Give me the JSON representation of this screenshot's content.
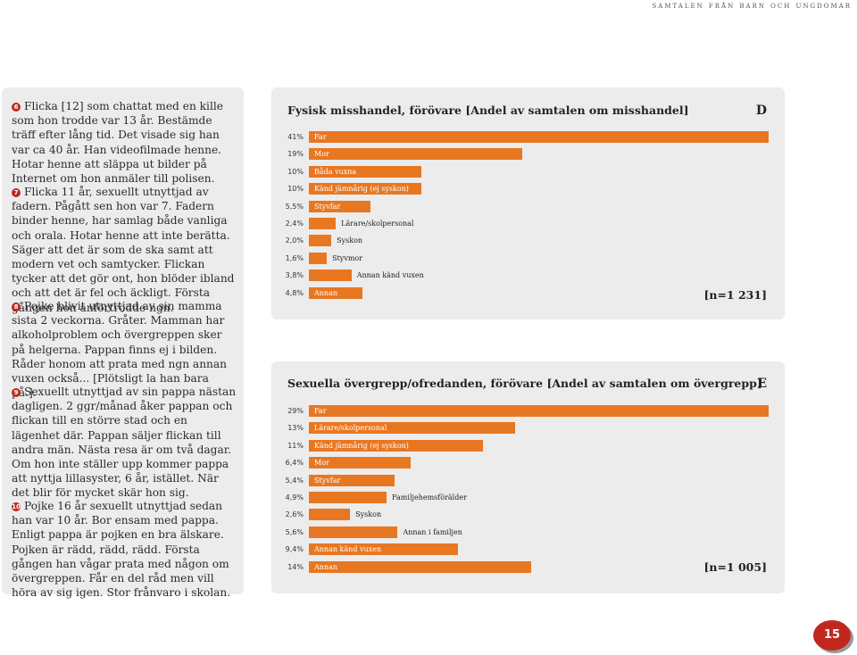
{
  "header": {
    "running_title": "samtalen från barn och ungdomar"
  },
  "stories": [
    {
      "num": "6",
      "text": "Flicka [12] som chattat med en kille som hon trodde var 13 år. Bestämde träff efter lång tid. Det visade sig han var ca 40 år. Han videofilmade henne. Hotar henne att släppa ut bilder på Internet om hon anmäler till polisen."
    },
    {
      "num": "7",
      "text": "Flicka 11 år, sexuellt utnyttjad av fadern. Pågått sen hon var 7. Fadern binder henne, har samlag både vanliga och orala. Hotar henne att inte berätta. Säger att det är som de ska samt att modern vet och samtycker. Flickan tycker att det gör ont, hon blöder ibland och att det är fel och äckligt. Första gången hon anförtrodde ngn."
    },
    {
      "num": "8",
      "text": "Pojke blivit utnyttjad av sin mamma sista 2 veckorna. Gråter. Mamman har alkoholproblem och övergreppen sker på helgerna. Pappan finns ej i bilden. Råder honom att prata med ngn annan vuxen också... [Plötsligt la han bara på.]."
    },
    {
      "num": "9",
      "text": "Sexuellt utnyttjad av sin pappa nästan dagligen. 2 ggr/månad åker pappan och flickan till en större stad och en lägenhet där. Pappan säljer flickan till andra män. Nästa resa är om två dagar. Om hon inte ställer upp kommer pappa att nyttja lillasyster, 6 år, istället. När det blir för mycket skär hon sig."
    },
    {
      "num": "10",
      "text": "Pojke 16 år sexuellt utnyttjad sedan han var 10 år. Bor ensam med pappa. Enligt pappa är pojken en bra älskare. Pojken är rädd, rädd, rädd. Första gången han vågar prata med någon om övergreppen. Får en del råd men vill höra av sig igen. Stor frånvaro i skolan."
    }
  ],
  "chart_data": [
    {
      "type": "bar",
      "letter": "D",
      "title": "Fysisk misshandel, förövare [Andel av samtalen om misshandel]",
      "n_label": "[n=1 231]",
      "accent_color": "#e87722",
      "value_labels": [
        "41%",
        "19%",
        "10%",
        "10%",
        "5,5%",
        "2,4%",
        "2,0%",
        "1,6%",
        "3,8%",
        "4,8%"
      ],
      "categories": [
        "Far",
        "Mor",
        "Båda vuxna",
        "Känd jämnårig (ej syskon)",
        "Styvfar",
        "Lärare/skolpersonal",
        "Syskon",
        "Styvmor",
        "Annan känd vuxen",
        "Annan"
      ],
      "values": [
        41,
        19,
        10,
        10,
        5.5,
        2.4,
        2.0,
        1.6,
        3.8,
        4.8
      ],
      "xlim": [
        0,
        41
      ]
    },
    {
      "type": "bar",
      "letter": "E",
      "title": "Sexuella övergrepp/ofredanden, förövare [Andel av samtalen om övergrepp]",
      "n_label": "[n=1 005]",
      "accent_color": "#e87722",
      "value_labels": [
        "29%",
        "13%",
        "11%",
        "6,4%",
        "5,4%",
        "4,9%",
        "2,6%",
        "5,6%",
        "9,4%",
        "14%"
      ],
      "categories": [
        "Far",
        "Lärare/skolpersonal",
        "Känd jämnårig (ej syskon)",
        "Mor",
        "Styvfar",
        "Familjehemsförälder",
        "Syskon",
        "Annan i familjen",
        "Annan känd vuxen",
        "Annan"
      ],
      "values": [
        29,
        13,
        11,
        6.4,
        5.4,
        4.9,
        2.6,
        5.6,
        9.4,
        14
      ],
      "xlim": [
        0,
        29
      ]
    }
  ],
  "footer": {
    "page_number": "15"
  }
}
